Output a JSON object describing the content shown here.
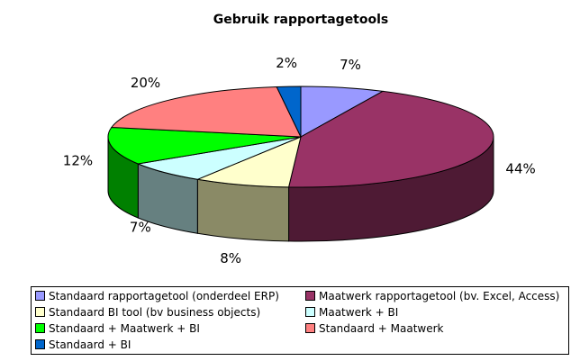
{
  "chart_data": {
    "type": "pie",
    "title": "Gebruik rapportagetools",
    "three_d": true,
    "legend_placement": "bottom",
    "slices": [
      {
        "name": "Standaard rapportagetool (onderdeel ERP)",
        "value": 7,
        "label": "7%",
        "color": "#9999ff",
        "side": "#6b6bb3"
      },
      {
        "name": "Maatwerk rapportagetool (bv. Excel, Access)",
        "value": 44,
        "label": "44%",
        "color": "#993366",
        "side": "#4e1a34"
      },
      {
        "name": "Standaard BI tool (bv business objects)",
        "value": 8,
        "label": "8%",
        "color": "#ffffcc",
        "side": "#8a8a66"
      },
      {
        "name": "Maatwerk + BI",
        "value": 7,
        "label": "7%",
        "color": "#ccffff",
        "side": "#668080"
      },
      {
        "name": "Standaard + Maatwerk + BI",
        "value": 12,
        "label": "12%",
        "color": "#00ff00",
        "side": "#008000"
      },
      {
        "name": "Standaard + Maatwerk",
        "value": 20,
        "label": "20%",
        "color": "#ff8080",
        "side": "#a04848"
      },
      {
        "name": "Standaard + BI",
        "value": 2,
        "label": "2%",
        "color": "#0066cc",
        "side": "#003366"
      }
    ]
  }
}
